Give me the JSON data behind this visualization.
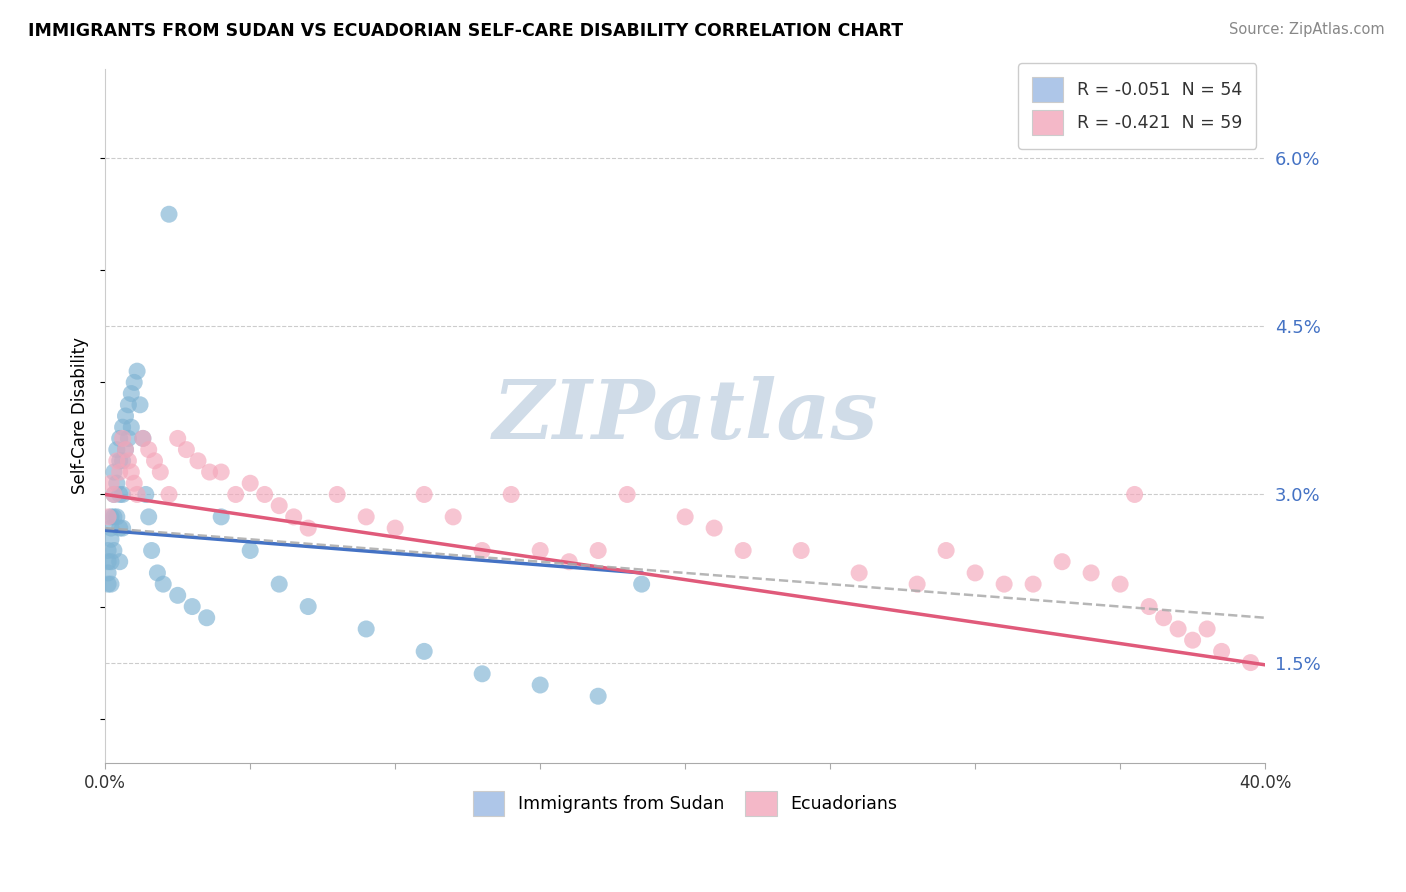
{
  "title": "IMMIGRANTS FROM SUDAN VS ECUADORIAN SELF-CARE DISABILITY CORRELATION CHART",
  "source": "Source: ZipAtlas.com",
  "ylabel": "Self-Care Disability",
  "y_ticks": [
    0.015,
    0.03,
    0.045,
    0.06
  ],
  "y_tick_labels": [
    "1.5%",
    "3.0%",
    "4.5%",
    "6.0%"
  ],
  "xlim": [
    0.0,
    0.4
  ],
  "ylim": [
    0.006,
    0.068
  ],
  "legend_entries": [
    "R = -0.051  N = 54",
    "R = -0.421  N = 59"
  ],
  "legend_labels": [
    "Immigrants from Sudan",
    "Ecuadorians"
  ],
  "blue_dot_color": "#7fb3d3",
  "pink_dot_color": "#f4a7ba",
  "blue_line_color": "#4472c4",
  "pink_line_color": "#e05a7a",
  "dash_line_color": "#aaaaaa",
  "watermark_text": "ZIPatlas",
  "watermark_color": "#d0dce8",
  "grid_color": "#cccccc",
  "blue_legend_color": "#aec6e8",
  "pink_legend_color": "#f4b8c8",
  "sudan_line_x0": 0.0,
  "sudan_line_x1": 0.185,
  "sudan_line_y0": 0.0268,
  "sudan_line_y1": 0.023,
  "ecuador_line_x0": 0.0,
  "ecuador_line_x1": 0.4,
  "ecuador_line_y0": 0.03,
  "ecuador_line_y1": 0.0148,
  "dash_line_x0": 0.0,
  "dash_line_x1": 0.4,
  "dash_line_y0": 0.027,
  "dash_line_y1": 0.019,
  "sudan_x": [
    0.001,
    0.001,
    0.001,
    0.001,
    0.002,
    0.002,
    0.002,
    0.002,
    0.002,
    0.003,
    0.003,
    0.003,
    0.003,
    0.004,
    0.004,
    0.004,
    0.005,
    0.005,
    0.005,
    0.005,
    0.005,
    0.006,
    0.006,
    0.006,
    0.006,
    0.007,
    0.007,
    0.008,
    0.008,
    0.009,
    0.009,
    0.01,
    0.011,
    0.012,
    0.013,
    0.014,
    0.015,
    0.016,
    0.018,
    0.02,
    0.022,
    0.025,
    0.03,
    0.035,
    0.04,
    0.05,
    0.06,
    0.07,
    0.09,
    0.11,
    0.13,
    0.15,
    0.17,
    0.185
  ],
  "sudan_y": [
    0.025,
    0.024,
    0.023,
    0.022,
    0.028,
    0.027,
    0.026,
    0.024,
    0.022,
    0.032,
    0.03,
    0.028,
    0.025,
    0.034,
    0.031,
    0.028,
    0.035,
    0.033,
    0.03,
    0.027,
    0.024,
    0.036,
    0.033,
    0.03,
    0.027,
    0.037,
    0.034,
    0.038,
    0.035,
    0.039,
    0.036,
    0.04,
    0.041,
    0.038,
    0.035,
    0.03,
    0.028,
    0.025,
    0.023,
    0.022,
    0.055,
    0.021,
    0.02,
    0.019,
    0.028,
    0.025,
    0.022,
    0.02,
    0.018,
    0.016,
    0.014,
    0.013,
    0.012,
    0.022
  ],
  "ecuador_x": [
    0.001,
    0.002,
    0.003,
    0.004,
    0.005,
    0.006,
    0.007,
    0.008,
    0.009,
    0.01,
    0.011,
    0.013,
    0.015,
    0.017,
    0.019,
    0.022,
    0.025,
    0.028,
    0.032,
    0.036,
    0.04,
    0.045,
    0.05,
    0.055,
    0.06,
    0.065,
    0.07,
    0.08,
    0.09,
    0.1,
    0.11,
    0.12,
    0.13,
    0.14,
    0.15,
    0.16,
    0.17,
    0.18,
    0.2,
    0.21,
    0.22,
    0.24,
    0.26,
    0.28,
    0.29,
    0.3,
    0.31,
    0.32,
    0.33,
    0.34,
    0.35,
    0.355,
    0.36,
    0.365,
    0.37,
    0.375,
    0.38,
    0.385,
    0.395
  ],
  "ecuador_y": [
    0.028,
    0.031,
    0.03,
    0.033,
    0.032,
    0.035,
    0.034,
    0.033,
    0.032,
    0.031,
    0.03,
    0.035,
    0.034,
    0.033,
    0.032,
    0.03,
    0.035,
    0.034,
    0.033,
    0.032,
    0.032,
    0.03,
    0.031,
    0.03,
    0.029,
    0.028,
    0.027,
    0.03,
    0.028,
    0.027,
    0.03,
    0.028,
    0.025,
    0.03,
    0.025,
    0.024,
    0.025,
    0.03,
    0.028,
    0.027,
    0.025,
    0.025,
    0.023,
    0.022,
    0.025,
    0.023,
    0.022,
    0.022,
    0.024,
    0.023,
    0.022,
    0.03,
    0.02,
    0.019,
    0.018,
    0.017,
    0.018,
    0.016,
    0.015
  ]
}
